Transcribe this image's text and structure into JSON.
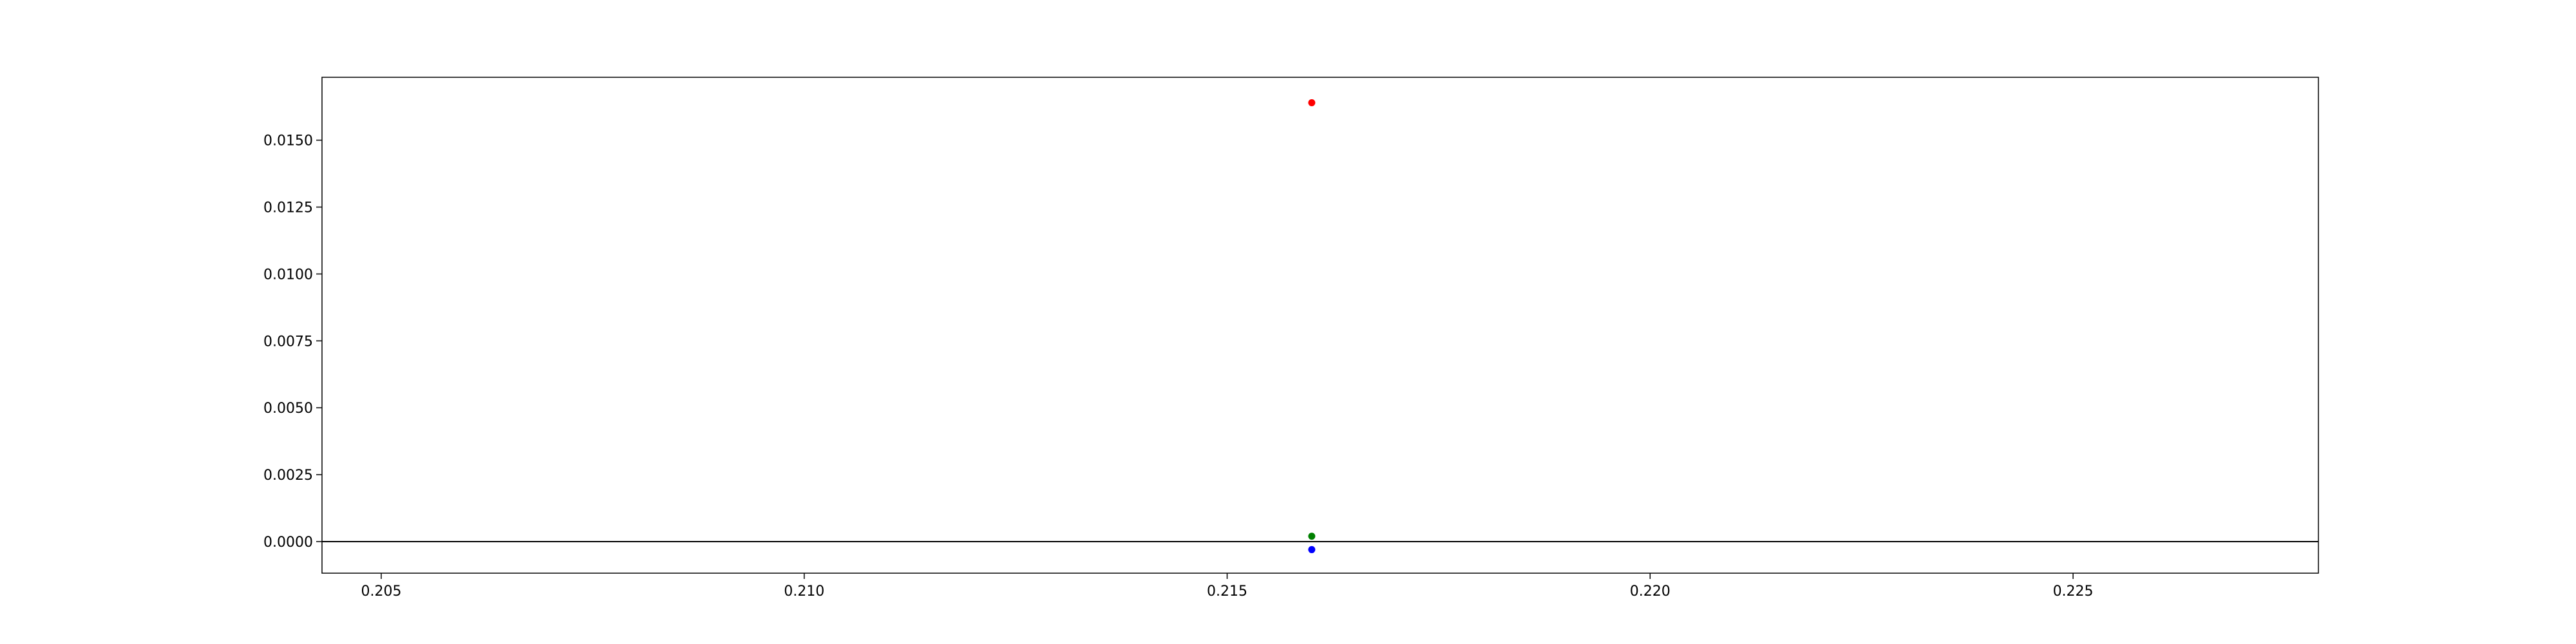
{
  "chart_data": {
    "type": "scatter",
    "title": "",
    "xlabel": "",
    "ylabel": "",
    "xlim": [
      0.2043,
      0.2279
    ],
    "ylim": [
      -0.00118,
      0.01735
    ],
    "x_ticks": [
      0.205,
      0.21,
      0.215,
      0.22,
      0.225
    ],
    "x_tick_labels": [
      "0.205",
      "0.210",
      "0.215",
      "0.220",
      "0.225"
    ],
    "y_ticks": [
      0,
      0.0025,
      0.005,
      0.0075,
      0.01,
      0.0125,
      0.015
    ],
    "y_tick_labels": [
      "0.0000",
      "0.0025",
      "0.0050",
      "0.0075",
      "0.0100",
      "0.0125",
      "0.0150"
    ],
    "grid": false,
    "legend": "none",
    "reference_lines": [
      {
        "orientation": "horizontal",
        "y": 0,
        "color": "#000000"
      }
    ],
    "series": [
      {
        "color": "#ff0000",
        "points": [
          {
            "x": 0.216,
            "y": 0.0164
          }
        ]
      },
      {
        "color": "#008000",
        "points": [
          {
            "x": 0.216,
            "y": 0.0002
          }
        ]
      },
      {
        "color": "#0000ff",
        "points": [
          {
            "x": 0.216,
            "y": -0.0003
          }
        ]
      }
    ]
  }
}
